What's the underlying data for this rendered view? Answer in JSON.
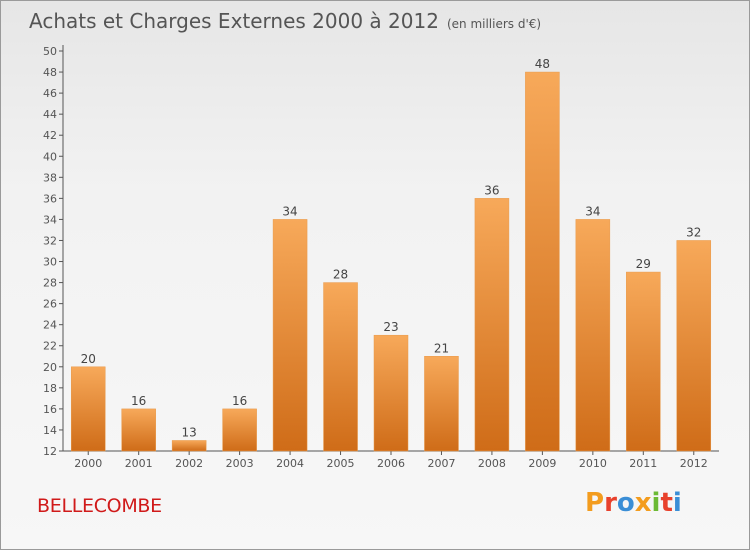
{
  "title": "Achats et Charges Externes 2000 à 2012",
  "subtitle": "(en milliers d'€)",
  "city": "BELLECOMBE",
  "brand": {
    "text": "Proxiti",
    "colors": [
      "#f39c1e",
      "#e8412c",
      "#3a8ed6",
      "#f39c1e",
      "#6cba35",
      "#e8412c",
      "#3a8ed6"
    ]
  },
  "colors": {
    "bar_light": "#f7a95a",
    "bar_dark": "#cf6c18",
    "axis": "#555555",
    "city": "#d01a1a"
  },
  "chart_data": {
    "type": "bar",
    "categories": [
      "2000",
      "2001",
      "2002",
      "2003",
      "2004",
      "2005",
      "2006",
      "2007",
      "2008",
      "2009",
      "2010",
      "2011",
      "2012"
    ],
    "values": [
      20,
      16,
      13,
      16,
      34,
      28,
      23,
      21,
      36,
      48,
      34,
      29,
      32
    ],
    "data_labels": [
      "20",
      "16",
      "13",
      "16",
      "34",
      "28",
      "23",
      "21",
      "36",
      "48",
      "34",
      "29",
      "32"
    ],
    "y_ticks": [
      "12",
      "14",
      "16",
      "18",
      "20",
      "22",
      "24",
      "26",
      "28",
      "30",
      "32",
      "34",
      "36",
      "38",
      "40",
      "42",
      "44",
      "46",
      "48",
      "50"
    ],
    "ylim": [
      12,
      50
    ],
    "grid": false,
    "legend": "none"
  }
}
